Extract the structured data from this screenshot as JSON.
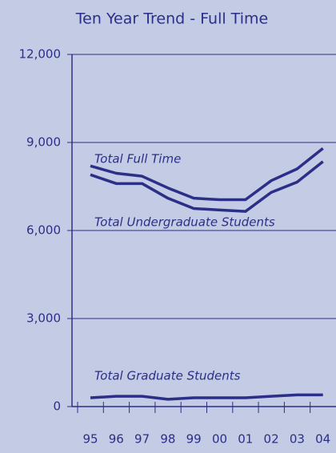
{
  "chart_data": {
    "type": "line",
    "title": "Ten Year Trend - Full Time",
    "categories": [
      "95",
      "96",
      "97",
      "98",
      "99",
      "00",
      "01",
      "02",
      "03",
      "04"
    ],
    "series": [
      {
        "name": "Total Full Time",
        "color": "#2b2f87",
        "values": [
          8200,
          7950,
          7850,
          7450,
          7100,
          7050,
          7050,
          7700,
          8100,
          8800
        ]
      },
      {
        "name": "Total Undergraduate Students",
        "color": "#2b2f87",
        "values": [
          7900,
          7600,
          7600,
          7100,
          6750,
          6700,
          6650,
          7300,
          7650,
          8350
        ]
      },
      {
        "name": "Total Graduate Students",
        "color": "#2b2f87",
        "values": [
          300,
          350,
          350,
          250,
          300,
          300,
          300,
          350,
          400,
          400
        ]
      }
    ],
    "ylim": [
      0,
      12000
    ],
    "yticks": [
      0,
      {
        "value": 3000,
        "label": "3,000"
      },
      {
        "value": 6000,
        "label": "6,000"
      },
      {
        "value": 9000,
        "label": "9,000"
      },
      {
        "value": 12000,
        "label": "12,000"
      }
    ],
    "grid": true
  }
}
